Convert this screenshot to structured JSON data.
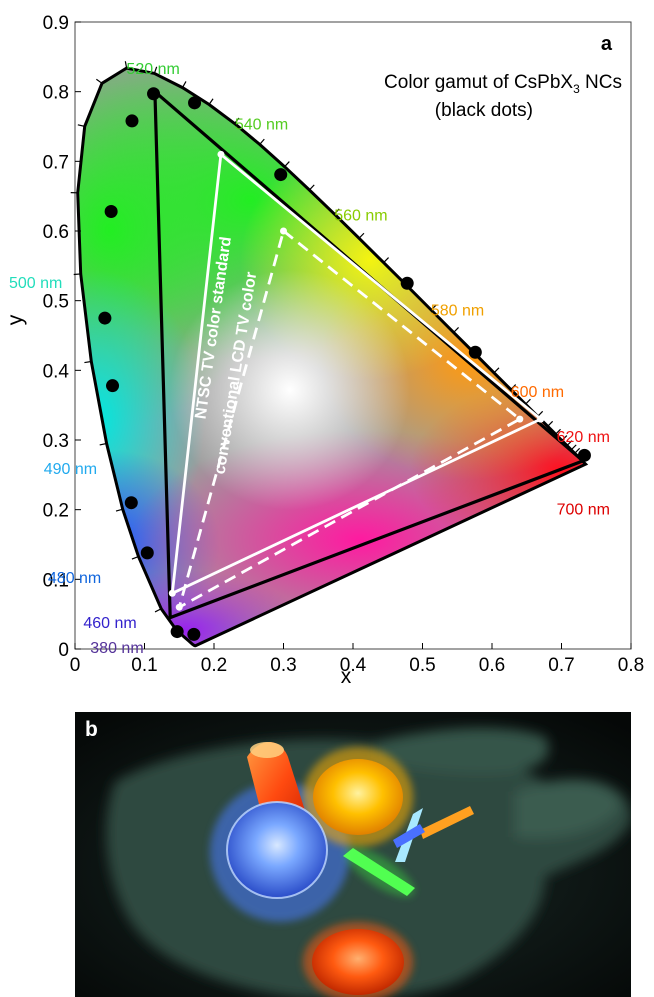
{
  "chart_data": {
    "type": "scatter",
    "panel_label": "a",
    "title": "Color gamut of CsPbX3 NCs",
    "title_main": "Color gamut of CsPbX",
    "title_sub": "3",
    "title_tail": " NCs",
    "subtitle": "(black dots)",
    "xlabel": "x",
    "ylabel": "y",
    "xlim": [
      0,
      0.8
    ],
    "ylim": [
      0,
      0.9
    ],
    "xticks": [
      "0",
      "0.1",
      "0.2",
      "0.3",
      "0.4",
      "0.5",
      "0.6",
      "0.7",
      "0.8"
    ],
    "yticks": [
      "0",
      "0.1",
      "0.2",
      "0.3",
      "0.4",
      "0.5",
      "0.6",
      "0.7",
      "0.8",
      "0.9"
    ],
    "grid": false,
    "spectral_locus_labels": [
      {
        "text": "520 nm",
        "x": 0.074,
        "y": 0.834,
        "color": "#33cc33"
      },
      {
        "text": "540 nm",
        "x": 0.23,
        "y": 0.754,
        "color": "#55cc22"
      },
      {
        "text": "560 nm",
        "x": 0.373,
        "y": 0.624,
        "color": "#88cc00"
      },
      {
        "text": "580 nm",
        "x": 0.512,
        "y": 0.487,
        "color": "#f0a000"
      },
      {
        "text": "600 nm",
        "x": 0.627,
        "y": 0.37,
        "color": "#ff6a00"
      },
      {
        "text": "620 nm",
        "x": 0.693,
        "y": 0.306,
        "color": "#ee1111"
      },
      {
        "text": "700 nm",
        "x": 0.693,
        "y": 0.202,
        "color": "#dd0000"
      },
      {
        "text": "500 nm",
        "x": -0.095,
        "y": 0.527,
        "color": "#22ddbb"
      },
      {
        "text": "490 nm",
        "x": -0.045,
        "y": 0.26,
        "color": "#22aaee"
      },
      {
        "text": "480 nm",
        "x": -0.039,
        "y": 0.103,
        "color": "#1166dd"
      },
      {
        "text": "460 nm",
        "x": 0.012,
        "y": 0.039,
        "color": "#3322cc"
      },
      {
        "text": "380 nm",
        "x": 0.022,
        "y": 0.003,
        "color": "#553399"
      }
    ],
    "series": [
      {
        "name": "CsPbX3 NCs",
        "marker": "black-dot",
        "points": [
          [
            0.113,
            0.797
          ],
          [
            0.082,
            0.758
          ],
          [
            0.172,
            0.784
          ],
          [
            0.052,
            0.628
          ],
          [
            0.296,
            0.681
          ],
          [
            0.478,
            0.525
          ],
          [
            0.576,
            0.426
          ],
          [
            0.733,
            0.278
          ],
          [
            0.043,
            0.475
          ],
          [
            0.054,
            0.378
          ],
          [
            0.081,
            0.21
          ],
          [
            0.104,
            0.138
          ],
          [
            0.147,
            0.025
          ],
          [
            0.171,
            0.021
          ]
        ]
      }
    ],
    "triangles": [
      {
        "name": "CsPbX3 gamut",
        "vertices": [
          [
            0.115,
            0.8
          ],
          [
            0.731,
            0.27
          ],
          [
            0.137,
            0.045
          ]
        ],
        "color": "#000000",
        "dash": false
      },
      {
        "name": "NTSC TV color standard",
        "vertices": [
          [
            0.21,
            0.71
          ],
          [
            0.67,
            0.33
          ],
          [
            0.14,
            0.08
          ]
        ],
        "color": "#ffffff",
        "dash": false
      },
      {
        "name": "conventional LCD TV color",
        "vertices": [
          [
            0.3,
            0.6
          ],
          [
            0.64,
            0.33
          ],
          [
            0.15,
            0.06
          ]
        ],
        "color": "#ffffff",
        "dash": true
      }
    ],
    "annotations": [
      {
        "text": "NTSC TV color standard",
        "x": 0.206,
        "y": 0.46,
        "rotation": -82
      },
      {
        "text": "conventional LCD TV color",
        "x": 0.238,
        "y": 0.395,
        "rotation": -81
      }
    ]
  },
  "photo": {
    "panel_label": "b",
    "colors": {
      "blue": "#5b8fff",
      "orange_red": "#ff5a10",
      "yellow": "#ffc000",
      "red_orange_cylinder": "#ff6a1a",
      "green_stick": "#3cff3c",
      "cyan_stick": "#88e0ff",
      "orange_stick": "#ffa020",
      "glove": "#2f4a40"
    }
  }
}
